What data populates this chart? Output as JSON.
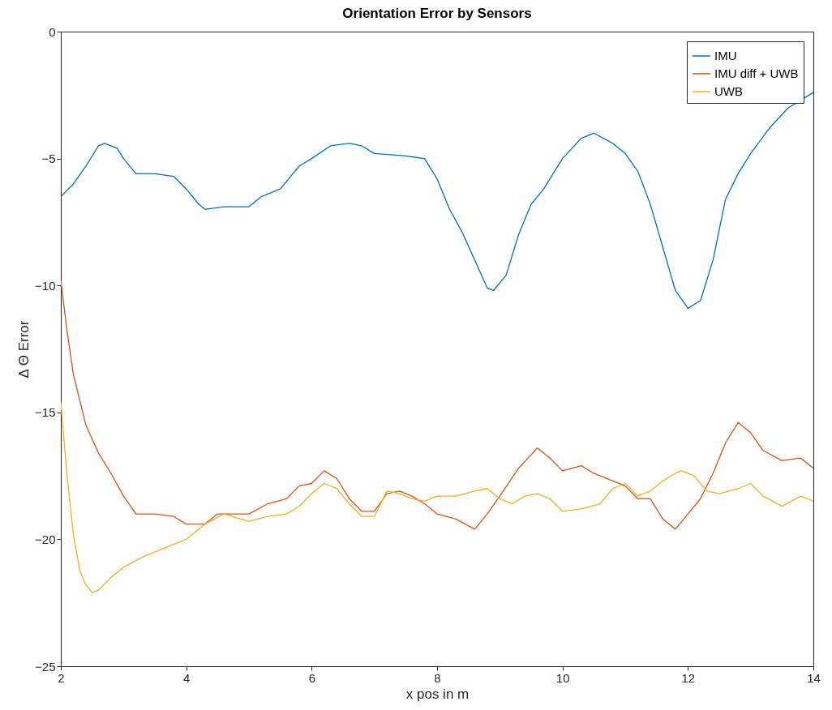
{
  "chart_data": {
    "type": "line",
    "title": "Orientation Error by Sensors",
    "xlabel": "x pos in m",
    "ylabel": "Δ Θ Error",
    "xlim": [
      2,
      14
    ],
    "xticks": [
      2,
      4,
      6,
      8,
      10,
      12,
      14
    ],
    "ylim": [
      -25,
      0
    ],
    "yticks": [
      -25,
      -20,
      -15,
      -10,
      -5,
      0
    ],
    "grid": false,
    "legend": "top right",
    "marker": "none",
    "line_style": "solid",
    "series": [
      {
        "name": "IMU",
        "color": "#0072bd",
        "x": [
          2,
          2.2,
          2.4,
          2.6,
          2.7,
          2.9,
          3,
          3.2,
          3.5,
          3.8,
          4,
          4.2,
          4.3,
          4.6,
          5,
          5.2,
          5.5,
          5.8,
          6,
          6.3,
          6.6,
          6.8,
          7,
          7.5,
          7.8,
          8,
          8.2,
          8.4,
          8.6,
          8.8,
          8.9,
          9.1,
          9.3,
          9.5,
          9.7,
          10,
          10.3,
          10.5,
          10.8,
          11,
          11.2,
          11.4,
          11.6,
          11.8,
          12,
          12.2,
          12.4,
          12.6,
          12.8,
          13,
          13.3,
          13.6,
          14
        ],
        "values": [
          -6.5,
          -6,
          -5.3,
          -4.5,
          -4.4,
          -4.6,
          -5,
          -5.6,
          -5.6,
          -5.7,
          -6.2,
          -6.8,
          -7,
          -6.9,
          -6.9,
          -6.5,
          -6.2,
          -5.3,
          -5,
          -4.5,
          -4.4,
          -4.5,
          -4.8,
          -4.9,
          -5,
          -5.8,
          -7,
          -7.9,
          -9,
          -10.1,
          -10.2,
          -9.6,
          -8,
          -6.8,
          -6.2,
          -5,
          -4.2,
          -4,
          -4.4,
          -4.8,
          -5.5,
          -6.8,
          -8.5,
          -10.2,
          -10.9,
          -10.6,
          -9,
          -6.6,
          -5.6,
          -4.8,
          -3.8,
          -3,
          -2.4
        ]
      },
      {
        "name": "IMU diff + UWB",
        "color": "#d95319",
        "x": [
          2,
          2.1,
          2.2,
          2.4,
          2.6,
          2.8,
          3,
          3.2,
          3.5,
          3.8,
          4,
          4.3,
          4.5,
          5,
          5.3,
          5.6,
          5.8,
          6,
          6.2,
          6.4,
          6.6,
          6.8,
          7,
          7.2,
          7.4,
          7.6,
          7.8,
          8,
          8.3,
          8.6,
          8.8,
          9,
          9.3,
          9.6,
          9.8,
          10,
          10.3,
          10.5,
          10.8,
          11,
          11.2,
          11.4,
          11.6,
          11.8,
          12,
          12.2,
          12.4,
          12.6,
          12.8,
          13,
          13.2,
          13.5,
          13.8,
          14
        ],
        "values": [
          -9.8,
          -11.8,
          -13.5,
          -15.5,
          -16.6,
          -17.4,
          -18.3,
          -19,
          -19,
          -19.1,
          -19.4,
          -19.4,
          -19,
          -19,
          -18.6,
          -18.4,
          -17.9,
          -17.8,
          -17.3,
          -17.6,
          -18.4,
          -18.9,
          -18.9,
          -18.2,
          -18.1,
          -18.3,
          -18.6,
          -19,
          -19.2,
          -19.6,
          -19,
          -18.3,
          -17.2,
          -16.4,
          -16.8,
          -17.3,
          -17.1,
          -17.4,
          -17.7,
          -17.9,
          -18.4,
          -18.4,
          -19.2,
          -19.6,
          -19,
          -18.4,
          -17.4,
          -16.2,
          -15.4,
          -15.8,
          -16.5,
          -16.9,
          -16.8,
          -17.2
        ]
      },
      {
        "name": "UWB",
        "color": "#edb120",
        "x": [
          2,
          2.1,
          2.2,
          2.3,
          2.4,
          2.5,
          2.6,
          2.8,
          3,
          3.3,
          3.6,
          4,
          4.3,
          4.6,
          5,
          5.3,
          5.6,
          5.8,
          6,
          6.2,
          6.4,
          6.6,
          6.8,
          7,
          7.2,
          7.4,
          7.6,
          7.8,
          8,
          8.3,
          8.6,
          8.8,
          9,
          9.2,
          9.4,
          9.6,
          9.8,
          10,
          10.3,
          10.6,
          10.8,
          11,
          11.2,
          11.4,
          11.6,
          11.8,
          11.9,
          12.1,
          12.3,
          12.5,
          12.8,
          13,
          13.2,
          13.5,
          13.8,
          14
        ],
        "values": [
          -14.6,
          -17.5,
          -19.8,
          -21.2,
          -21.8,
          -22.1,
          -22,
          -21.5,
          -21.1,
          -20.7,
          -20.4,
          -20,
          -19.4,
          -19,
          -19.3,
          -19.1,
          -19,
          -18.7,
          -18.2,
          -17.8,
          -18,
          -18.6,
          -19.1,
          -19.1,
          -18.1,
          -18.2,
          -18.4,
          -18.5,
          -18.3,
          -18.3,
          -18.1,
          -18,
          -18.4,
          -18.6,
          -18.3,
          -18.2,
          -18.4,
          -18.9,
          -18.8,
          -18.6,
          -18,
          -17.8,
          -18.3,
          -18.1,
          -17.7,
          -17.4,
          -17.3,
          -17.5,
          -18.1,
          -18.2,
          -18,
          -17.8,
          -18.3,
          -18.7,
          -18.3,
          -18.5
        ]
      }
    ]
  }
}
